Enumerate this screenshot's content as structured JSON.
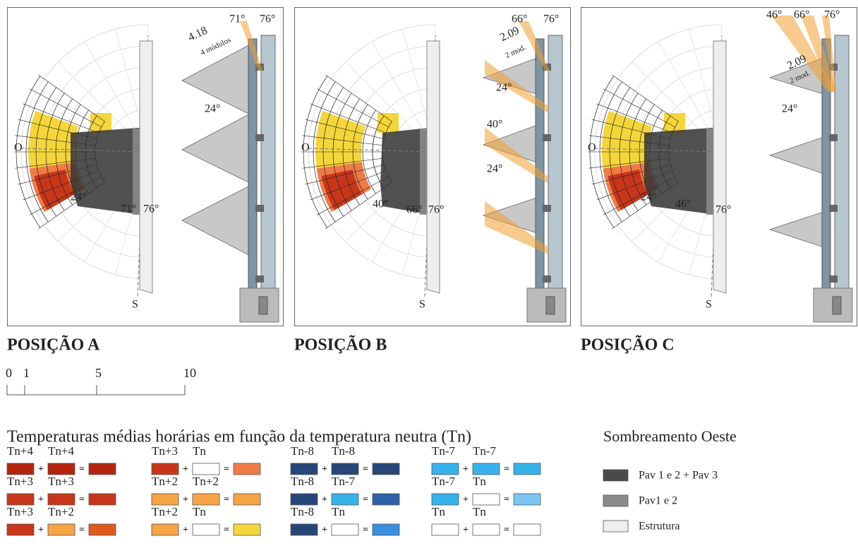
{
  "panels": [
    {
      "title": "POSIÇÃO A",
      "labels": [
        "71°",
        "76°",
        "4.18",
        "4 módulos",
        "24°",
        "24°",
        "71°",
        "76°",
        "O",
        "S"
      ]
    },
    {
      "title": "POSIÇÃO B",
      "labels": [
        "66°",
        "76°",
        "2.09",
        "2 mod.",
        "24°",
        "40°",
        "24°",
        "40°",
        "66°",
        "76°",
        "O",
        "S"
      ]
    },
    {
      "title": "POSIÇÃO C",
      "labels": [
        "46°",
        "66°",
        "76°",
        "2.09",
        "2 mod.",
        "24°",
        "24°",
        "46°",
        "76°",
        "O",
        "S"
      ]
    }
  ],
  "scale": [
    "0",
    "1",
    "5",
    "10"
  ],
  "legend": {
    "title": "Temperaturas médias horárias em função da temperatura neutra (Tn)",
    "plus": "+",
    "equals": "=",
    "entries": [
      [
        "Tn+4",
        "Tn+4"
      ],
      [
        "Tn+3",
        "Tn+3"
      ],
      [
        "Tn+3",
        "Tn+2"
      ],
      [
        "Tn+3",
        "Tn"
      ],
      [
        "Tn+2",
        "Tn+2"
      ],
      [
        "Tn+2",
        "Tn"
      ],
      [
        "Tn-8",
        "Tn-8"
      ],
      [
        "Tn-8",
        "Tn-7"
      ],
      [
        "Tn-8",
        "Tn"
      ],
      [
        "Tn-7",
        "Tn-7"
      ],
      [
        "Tn-7",
        "Tn"
      ],
      [
        "Tn",
        "Tn"
      ]
    ]
  },
  "shading": {
    "title": "Sombreamento Oeste",
    "items": [
      "Pav 1 e 2 + Pav 3",
      "Pav1 e 2",
      "Estrutura"
    ]
  }
}
